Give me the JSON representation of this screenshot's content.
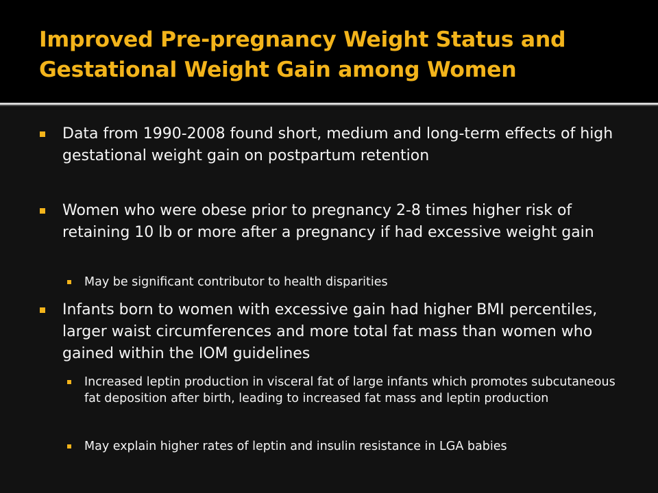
{
  "slide": {
    "title": "Improved Pre-pregnancy Weight Status and Gestational Weight Gain among Women",
    "bullets": [
      {
        "text": "Data from 1990-2008 found short, medium and long-term effects of high gestational weight gain on postpartum retention"
      },
      {
        "text": "Women who were obese prior to pregnancy 2-8 times higher risk of retaining 10 lb or more after a pregnancy if had excessive weight gain",
        "subbullets": [
          "May be significant contributor to health disparities"
        ]
      },
      {
        "text": "Infants born to women with excessive gain had higher BMI percentiles, larger waist circumferences and more total fat mass than women who gained within the IOM guidelines",
        "subbullets": [
          "Increased leptin production in visceral fat of large infants which promotes subcutaneous fat deposition after birth, leading to increased fat mass and leptin production",
          "May explain higher rates of leptin and insulin resistance in LGA babies"
        ]
      }
    ]
  },
  "theme": {
    "accent_color": "#f3b41b",
    "title_bar_color": "#000000",
    "body_text_color": "#f5f5f5",
    "background_color": "#121212"
  }
}
